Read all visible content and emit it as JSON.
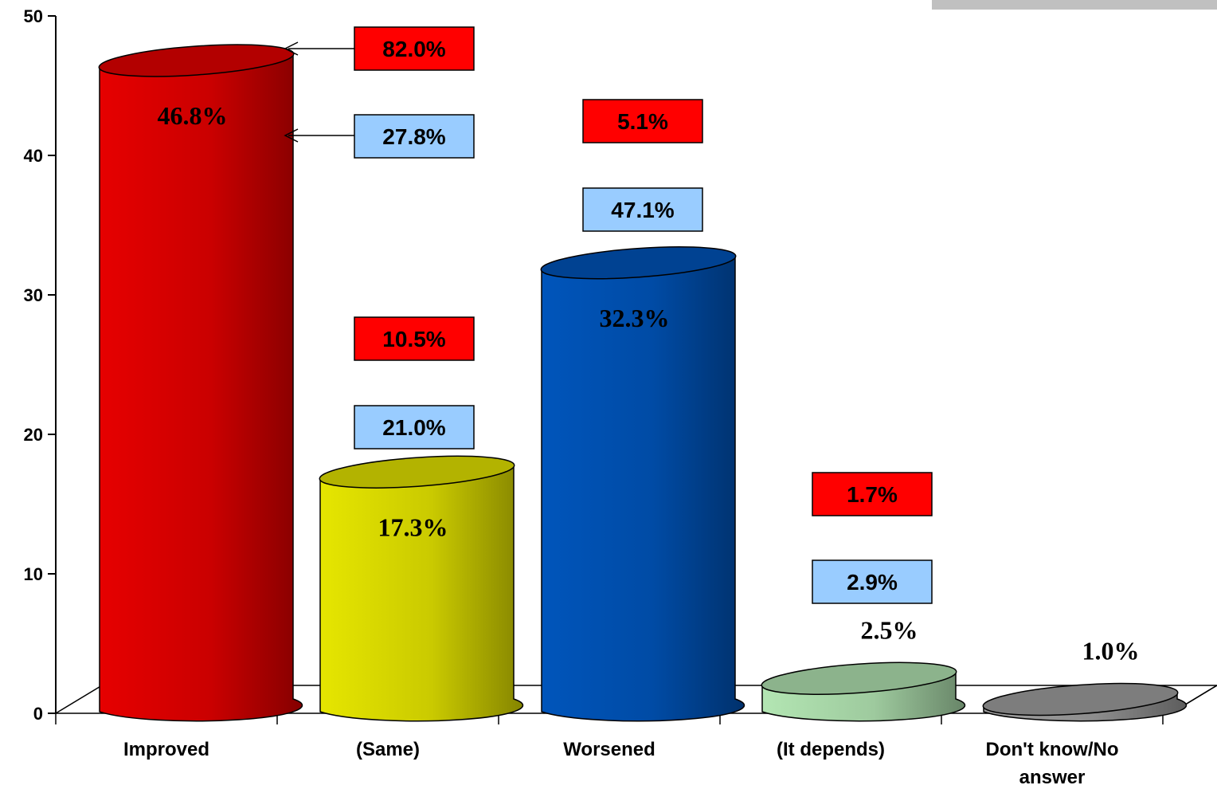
{
  "chart_data": {
    "type": "bar",
    "categories": [
      "Improved",
      "(Same)",
      "Worsened",
      "(It depends)",
      "Don't know/No answer"
    ],
    "values": [
      46.8,
      17.3,
      32.3,
      2.5,
      1.0
    ],
    "value_labels": [
      "46.8%",
      "17.3%",
      "32.3%",
      "2.5%",
      "1.0%"
    ],
    "colors": [
      "#e60000",
      "#e6e600",
      "#0055bb",
      "#b3e6b3",
      "#a0a0a0"
    ],
    "ylim": [
      0,
      50
    ],
    "yticks": [
      0,
      10,
      20,
      30,
      40,
      50
    ],
    "ytick_labels": [
      "0",
      "10",
      "20",
      "30",
      "40",
      "50"
    ],
    "comparison_boxes": [
      {
        "category": "Improved",
        "red": "82.0%",
        "blue": "27.8%"
      },
      {
        "category": "(Same)",
        "red": "10.5%",
        "blue": "21.0%"
      },
      {
        "category": "Worsened",
        "red": "5.1%",
        "blue": "47.1%"
      },
      {
        "category": "(It depends)",
        "red": "1.7%",
        "blue": "2.9%"
      }
    ],
    "box_colors": {
      "red": "#ff0000",
      "blue": "#99ccff"
    },
    "grid": false
  }
}
